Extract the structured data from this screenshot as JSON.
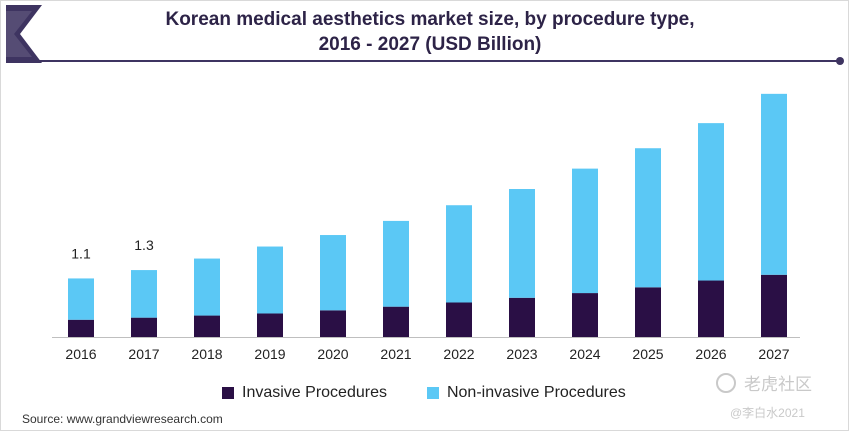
{
  "title_line1": "Korean medical aesthetics market size, by procedure type,",
  "title_line2": "2016 - 2027 (USD Billion)",
  "source": "Source: www.grandviewresearch.com",
  "watermark": "老虎社区",
  "watermark_sub": "@李白水2021",
  "colors": {
    "invasive": "#2a0f45",
    "non_invasive": "#5bc8f5",
    "title": "#2d2347",
    "logo": "#3e3461"
  },
  "chart_data": {
    "type": "bar",
    "stacked": true,
    "title": "Korean medical aesthetics market size, by procedure type, 2016 - 2027 (USD Billion)",
    "categories": [
      "2016",
      "2017",
      "2018",
      "2019",
      "2020",
      "2021",
      "2022",
      "2023",
      "2024",
      "2025",
      "2026",
      "2027"
    ],
    "series": [
      {
        "name": "Invasive Procedures",
        "values": [
          0.33,
          0.37,
          0.41,
          0.45,
          0.51,
          0.58,
          0.66,
          0.75,
          0.84,
          0.95,
          1.08,
          1.19
        ]
      },
      {
        "name": "Non-invasive Procedures",
        "values": [
          0.79,
          0.91,
          1.09,
          1.28,
          1.44,
          1.64,
          1.86,
          2.08,
          2.38,
          2.66,
          3.01,
          3.46
        ]
      }
    ],
    "data_labels": [
      {
        "category": "2016",
        "text": "1.1"
      },
      {
        "category": "2017",
        "text": "1.3"
      }
    ],
    "ylim": [
      0,
      4.8
    ],
    "grid": false,
    "legend": "bottom"
  }
}
